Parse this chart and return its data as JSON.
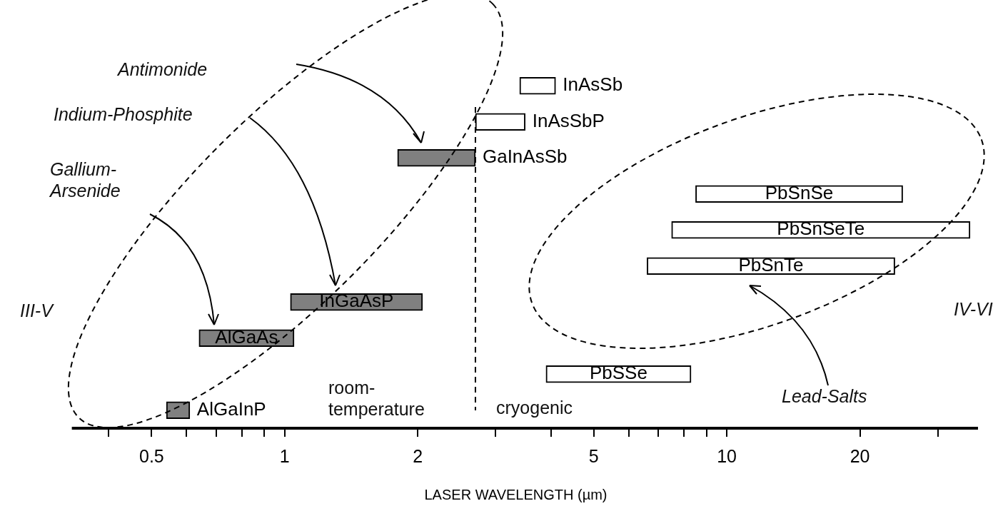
{
  "chart_data": {
    "type": "bar",
    "orientation": "horizontal",
    "xlabel": "LASER WAVELENGTH (µm)",
    "log": "x",
    "grid": false,
    "legend": false,
    "categories": [
      "InAsSb",
      "InAsSbP",
      "GaInAsSb",
      "PbSnSe",
      "PbSnSeTe",
      "PbSnTe",
      "InGaAsP",
      "AlGaAs",
      "PbSSe",
      "AlGaInP"
    ],
    "base": [
      3.4,
      2.7,
      1.8,
      8.5,
      7.5,
      6.6,
      1.03,
      0.64,
      3.9,
      0.54
    ],
    "values": [
      0.7,
      0.8,
      0.9,
      16.5,
      28,
      17.4,
      1.02,
      0.41,
      4.4,
      0.07
    ],
    "colors": [
      "#ffffff",
      "#ffffff",
      "#808080",
      "#ffffff",
      "#ffffff",
      "#ffffff",
      "#808080",
      "#808080",
      "#ffffff",
      "#808080"
    ],
    "xlim": [
      0.33,
      37
    ],
    "xticks": [
      {
        "value": 0.4,
        "label": null
      },
      0.5,
      {
        "value": 0.6,
        "label": null
      },
      {
        "value": 0.7,
        "label": null
      },
      {
        "value": 0.8,
        "label": null
      },
      {
        "value": 0.9,
        "label": null
      },
      1,
      2,
      {
        "value": 3,
        "label": null
      },
      {
        "value": 4,
        "label": null
      },
      5,
      {
        "value": 6,
        "label": null
      },
      {
        "value": 7,
        "label": null
      },
      {
        "value": 8,
        "label": null
      },
      {
        "value": 9,
        "label": null
      },
      10,
      20,
      {
        "value": 30,
        "label": null
      }
    ],
    "ref_lines": [
      {
        "axis": "x",
        "value": 2.7,
        "line_style": "dashed"
      }
    ],
    "annotations": [
      "Antimonide",
      "Indium-Phosphite",
      "Gallium-Arsenide",
      "III-V",
      "room-temperature",
      "cryogenic",
      "Lead-Salts",
      "IV-VI"
    ]
  }
}
